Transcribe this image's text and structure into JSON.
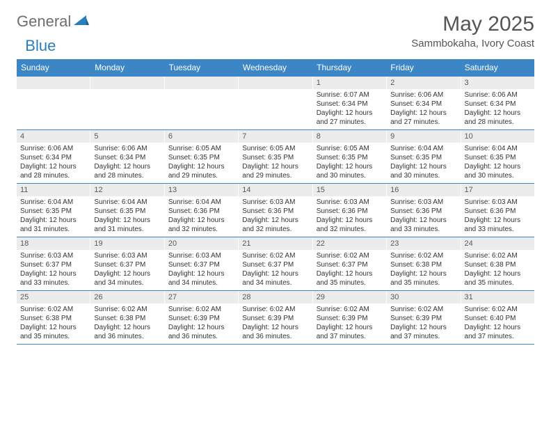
{
  "logo": {
    "text1": "General",
    "text2": "Blue"
  },
  "title": "May 2025",
  "subtitle": "Sammbokaha, Ivory Coast",
  "colors": {
    "header_bg": "#3d86c6",
    "header_text": "#ffffff",
    "daynum_bg": "#ececec",
    "daynum_text": "#595959",
    "body_text": "#333333",
    "title_text": "#555555",
    "logo_gray": "#6e6e6e",
    "logo_blue": "#2a7fba"
  },
  "font": {
    "title_size": 30,
    "subtitle_size": 15,
    "header_size": 12,
    "daynum_size": 11,
    "body_size": 10
  },
  "day_names": [
    "Sunday",
    "Monday",
    "Tuesday",
    "Wednesday",
    "Thursday",
    "Friday",
    "Saturday"
  ],
  "weeks": [
    [
      {},
      {},
      {},
      {},
      {
        "num": "1",
        "sunrise": "6:07 AM",
        "sunset": "6:34 PM",
        "daylight": "12 hours and 27 minutes."
      },
      {
        "num": "2",
        "sunrise": "6:06 AM",
        "sunset": "6:34 PM",
        "daylight": "12 hours and 27 minutes."
      },
      {
        "num": "3",
        "sunrise": "6:06 AM",
        "sunset": "6:34 PM",
        "daylight": "12 hours and 28 minutes."
      }
    ],
    [
      {
        "num": "4",
        "sunrise": "6:06 AM",
        "sunset": "6:34 PM",
        "daylight": "12 hours and 28 minutes."
      },
      {
        "num": "5",
        "sunrise": "6:06 AM",
        "sunset": "6:34 PM",
        "daylight": "12 hours and 28 minutes."
      },
      {
        "num": "6",
        "sunrise": "6:05 AM",
        "sunset": "6:35 PM",
        "daylight": "12 hours and 29 minutes."
      },
      {
        "num": "7",
        "sunrise": "6:05 AM",
        "sunset": "6:35 PM",
        "daylight": "12 hours and 29 minutes."
      },
      {
        "num": "8",
        "sunrise": "6:05 AM",
        "sunset": "6:35 PM",
        "daylight": "12 hours and 30 minutes."
      },
      {
        "num": "9",
        "sunrise": "6:04 AM",
        "sunset": "6:35 PM",
        "daylight": "12 hours and 30 minutes."
      },
      {
        "num": "10",
        "sunrise": "6:04 AM",
        "sunset": "6:35 PM",
        "daylight": "12 hours and 30 minutes."
      }
    ],
    [
      {
        "num": "11",
        "sunrise": "6:04 AM",
        "sunset": "6:35 PM",
        "daylight": "12 hours and 31 minutes."
      },
      {
        "num": "12",
        "sunrise": "6:04 AM",
        "sunset": "6:35 PM",
        "daylight": "12 hours and 31 minutes."
      },
      {
        "num": "13",
        "sunrise": "6:04 AM",
        "sunset": "6:36 PM",
        "daylight": "12 hours and 32 minutes."
      },
      {
        "num": "14",
        "sunrise": "6:03 AM",
        "sunset": "6:36 PM",
        "daylight": "12 hours and 32 minutes."
      },
      {
        "num": "15",
        "sunrise": "6:03 AM",
        "sunset": "6:36 PM",
        "daylight": "12 hours and 32 minutes."
      },
      {
        "num": "16",
        "sunrise": "6:03 AM",
        "sunset": "6:36 PM",
        "daylight": "12 hours and 33 minutes."
      },
      {
        "num": "17",
        "sunrise": "6:03 AM",
        "sunset": "6:36 PM",
        "daylight": "12 hours and 33 minutes."
      }
    ],
    [
      {
        "num": "18",
        "sunrise": "6:03 AM",
        "sunset": "6:37 PM",
        "daylight": "12 hours and 33 minutes."
      },
      {
        "num": "19",
        "sunrise": "6:03 AM",
        "sunset": "6:37 PM",
        "daylight": "12 hours and 34 minutes."
      },
      {
        "num": "20",
        "sunrise": "6:03 AM",
        "sunset": "6:37 PM",
        "daylight": "12 hours and 34 minutes."
      },
      {
        "num": "21",
        "sunrise": "6:02 AM",
        "sunset": "6:37 PM",
        "daylight": "12 hours and 34 minutes."
      },
      {
        "num": "22",
        "sunrise": "6:02 AM",
        "sunset": "6:37 PM",
        "daylight": "12 hours and 35 minutes."
      },
      {
        "num": "23",
        "sunrise": "6:02 AM",
        "sunset": "6:38 PM",
        "daylight": "12 hours and 35 minutes."
      },
      {
        "num": "24",
        "sunrise": "6:02 AM",
        "sunset": "6:38 PM",
        "daylight": "12 hours and 35 minutes."
      }
    ],
    [
      {
        "num": "25",
        "sunrise": "6:02 AM",
        "sunset": "6:38 PM",
        "daylight": "12 hours and 35 minutes."
      },
      {
        "num": "26",
        "sunrise": "6:02 AM",
        "sunset": "6:38 PM",
        "daylight": "12 hours and 36 minutes."
      },
      {
        "num": "27",
        "sunrise": "6:02 AM",
        "sunset": "6:39 PM",
        "daylight": "12 hours and 36 minutes."
      },
      {
        "num": "28",
        "sunrise": "6:02 AM",
        "sunset": "6:39 PM",
        "daylight": "12 hours and 36 minutes."
      },
      {
        "num": "29",
        "sunrise": "6:02 AM",
        "sunset": "6:39 PM",
        "daylight": "12 hours and 37 minutes."
      },
      {
        "num": "30",
        "sunrise": "6:02 AM",
        "sunset": "6:39 PM",
        "daylight": "12 hours and 37 minutes."
      },
      {
        "num": "31",
        "sunrise": "6:02 AM",
        "sunset": "6:40 PM",
        "daylight": "12 hours and 37 minutes."
      }
    ]
  ],
  "labels": {
    "sunrise": "Sunrise:",
    "sunset": "Sunset:",
    "daylight": "Daylight:"
  }
}
